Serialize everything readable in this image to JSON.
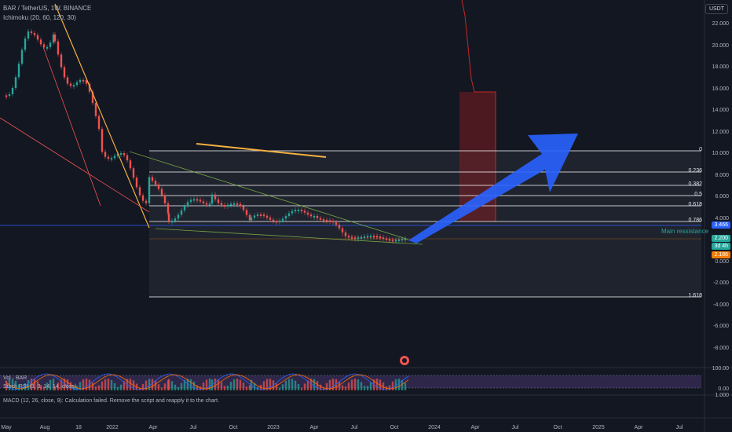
{
  "header": {
    "symbol_line": "BAR / TetherUS, 1W, BINANCE",
    "indicator_line": "Ichimoku (20, 60, 120, 30)"
  },
  "currency_badge": "USDT",
  "price_axis": [
    "22.000",
    "20.000",
    "18.000",
    "16.000",
    "14.000",
    "12.000",
    "10.000",
    "8.000",
    "6.000",
    "4.000",
    "2.000",
    "0.000",
    "-2.000",
    "-4.000",
    "-6.000",
    "-8.000"
  ],
  "fib_levels": [
    {
      "label": "0"
    },
    {
      "label": "0.236"
    },
    {
      "label": "0.382"
    },
    {
      "label": "0.5"
    },
    {
      "label": "0.618"
    },
    {
      "label": "0.786"
    },
    {
      "label": "1.618"
    }
  ],
  "annotations": {
    "main_resistance": "Main ressistance"
  },
  "price_badges": {
    "blue": "3.466",
    "teal_price": "2.200",
    "teal_time": "3d 4h",
    "orange": "2.186"
  },
  "colors": {
    "background": "#131722",
    "up": "#26a69a",
    "down": "#ef5350",
    "arrow": "#2962ff",
    "fib_line": "#ffffff",
    "trend_orange": "#f5b041",
    "badge_blue": "#2962ff",
    "badge_teal": "#26a69a",
    "badge_orange": "#f57c00"
  },
  "volume_pane": {
    "label": "Vol · BAR"
  },
  "stoch_pane": {
    "label": "Stoch RSI (3, 3, 14, 14, close)",
    "axis": [
      "100.00",
      "0.00"
    ]
  },
  "macd_pane": {
    "message": "MACD (12, 26, close, 9): Calculation failed. Remove the script and reapply it to the chart.",
    "axis": "1.000"
  },
  "time_axis": [
    "May",
    "Aug",
    "18",
    "2022",
    "Apr",
    "Jul",
    "Oct",
    "2023",
    "Apr",
    "Jul",
    "Oct",
    "2024",
    "Apr",
    "Jul",
    "Oct",
    "2025",
    "Apr",
    "Jul"
  ]
}
